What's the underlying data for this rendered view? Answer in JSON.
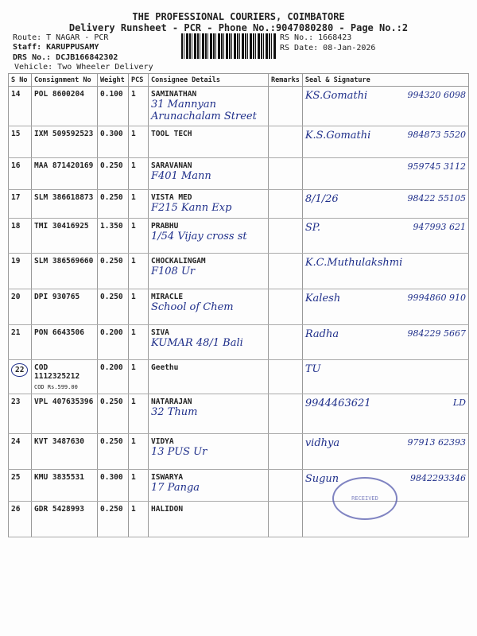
{
  "header": {
    "company": "THE PROFESSIONAL COURIERS, COIMBATORE",
    "subtitle": "Delivery Runsheet - PCR - Phone No.:9047080280 - Page No.:2",
    "route": "Route: T NAGAR - PCR",
    "staff": "Staff: KARUPPUSAMY",
    "drs": "DRS No.: DCJB166842302",
    "vehicle": "Vehicle: Two Wheeler Delivery",
    "rs_no": "RS No.: 1668423",
    "rs_date": "RS Date: 08-Jan-2026"
  },
  "columns": [
    "S No",
    "Consignment No",
    "Weight",
    "PCS",
    "Consignee Details",
    "Remarks",
    "Seal & Signature"
  ],
  "rows": [
    {
      "sno": "14",
      "cons": "POL 8600204",
      "weight": "0.100",
      "pcs": "1",
      "name": "SAMINATHAN",
      "hw": "31 Mannyan Arunachalam Street",
      "sig": "KS.Gomathi",
      "phone": "994320 6098"
    },
    {
      "sno": "15",
      "cons": "IXM 509592523",
      "weight": "0.300",
      "pcs": "1",
      "name": "TOOL TECH",
      "hw": "",
      "sig": "K.S.Gomathi",
      "phone": "984873 5520"
    },
    {
      "sno": "16",
      "cons": "MAA 871420169",
      "weight": "0.250",
      "pcs": "1",
      "name": "SARAVANAN",
      "hw": "F401 Mann",
      "sig": "",
      "phone": "959745 3112"
    },
    {
      "sno": "17",
      "cons": "SLM 386618873",
      "weight": "0.250",
      "pcs": "1",
      "name": "VISTA MED",
      "hw": "F215 Kann Exp",
      "sig": "8/1/26",
      "phone": "98422 55105"
    },
    {
      "sno": "18",
      "cons": "TMI 30416925",
      "weight": "1.350",
      "pcs": "1",
      "name": "PRABHU",
      "hw": "1/54 Vijay cross st",
      "sig": "SP.",
      "phone": "947993 621"
    },
    {
      "sno": "19",
      "cons": "SLM 386569660",
      "weight": "0.250",
      "pcs": "1",
      "name": "CHOCKALINGAM",
      "hw": "F108 Ur",
      "sig": "K.C.Muthulakshmi",
      "phone": ""
    },
    {
      "sno": "20",
      "cons": "DPI 930765",
      "weight": "0.250",
      "pcs": "1",
      "name": "MIRACLE",
      "hw": "School of Chem",
      "sig": "Kalesh",
      "phone": "9994860 910"
    },
    {
      "sno": "21",
      "cons": "PON 6643506",
      "weight": "0.200",
      "pcs": "1",
      "name": "SIVA",
      "hw": "KUMAR 48/1 Bali",
      "sig": "Radha",
      "phone": "984229 5667"
    },
    {
      "sno": "22",
      "cons": "COD 1112325212",
      "weight": "0.200",
      "pcs": "1",
      "name": "Geethu",
      "hw": "",
      "sig": "TU",
      "phone": "",
      "cod": "COD Rs.599.00"
    },
    {
      "sno": "23",
      "cons": "VPL 407635396",
      "weight": "0.250",
      "pcs": "1",
      "name": "NATARAJAN",
      "hw": "32 Thum",
      "sig": "9944463621",
      "phone": "LD"
    },
    {
      "sno": "24",
      "cons": "KVT 3487630",
      "weight": "0.250",
      "pcs": "1",
      "name": "VIDYA",
      "hw": "13 PUS Ur",
      "sig": "vidhya",
      "phone": "97913 62393"
    },
    {
      "sno": "25",
      "cons": "KMU 3835531",
      "weight": "0.300",
      "pcs": "1",
      "name": "ISWARYA",
      "hw": "17 Panga",
      "sig": "Sugun",
      "phone": "9842293346"
    },
    {
      "sno": "26",
      "cons": "GDR 5428993",
      "weight": "0.250",
      "pcs": "1",
      "name": "HALIDON",
      "hw": "",
      "sig": "",
      "phone": ""
    }
  ],
  "stamp": "LOGISTICS LIMITED RECEIVED COIMBATORE"
}
